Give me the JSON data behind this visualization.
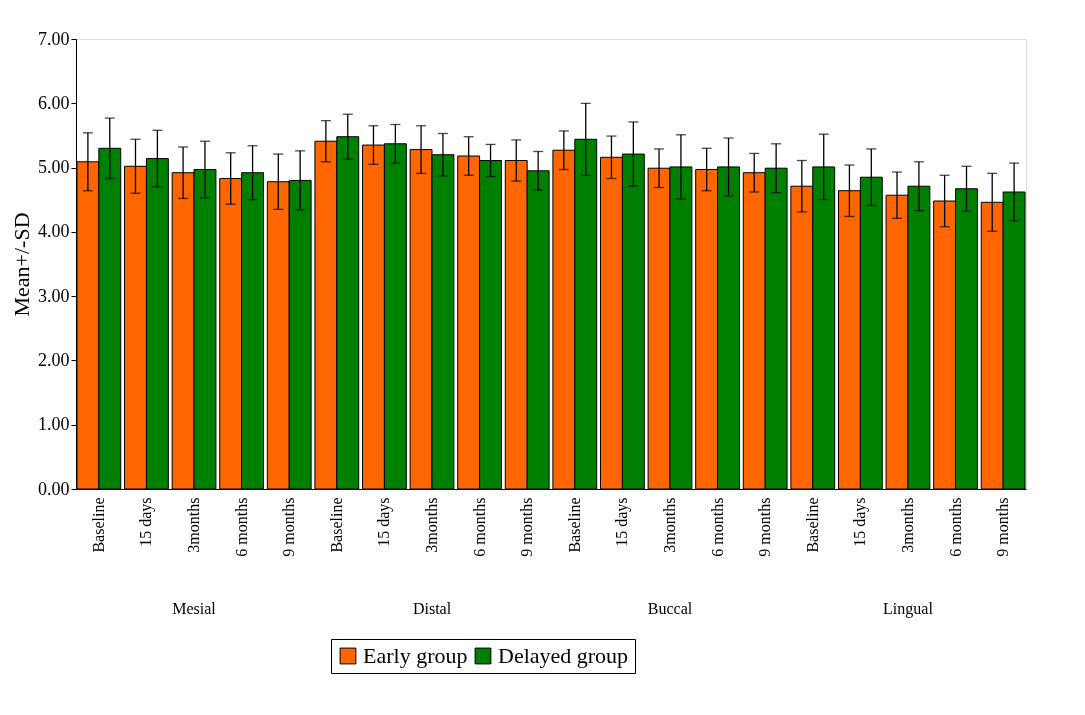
{
  "chart_data": {
    "type": "bar",
    "ylabel": "Mean+/-SD",
    "categories": [
      "Baseline",
      "15 days",
      "3months",
      "6 months",
      "9 months",
      "Baseline",
      "15 days",
      "3months",
      "6 months",
      "9 months",
      "Baseline",
      "15 days",
      "3months",
      "6 months",
      "9 months",
      "Baseline",
      "15 days",
      "3months",
      "6 months",
      "9 months"
    ],
    "series": [
      {
        "name": "Early group",
        "color": "#ff6600",
        "values": [
          5.09,
          5.02,
          4.92,
          4.83,
          4.78,
          5.41,
          5.35,
          5.28,
          5.18,
          5.11,
          5.27,
          5.16,
          4.99,
          4.97,
          4.92,
          4.71,
          4.64,
          4.57,
          4.48,
          4.46
        ],
        "errors": [
          0.45,
          0.42,
          0.4,
          0.4,
          0.43,
          0.32,
          0.3,
          0.37,
          0.3,
          0.32,
          0.3,
          0.33,
          0.3,
          0.33,
          0.3,
          0.4,
          0.4,
          0.36,
          0.4,
          0.45
        ]
      },
      {
        "name": "Delayed group",
        "color": "#008000",
        "values": [
          5.3,
          5.14,
          4.97,
          4.92,
          4.8,
          5.48,
          5.37,
          5.2,
          5.11,
          4.95,
          5.44,
          5.21,
          5.01,
          5.01,
          4.99,
          5.01,
          4.85,
          4.71,
          4.67,
          4.62
        ],
        "errors": [
          0.47,
          0.44,
          0.44,
          0.42,
          0.46,
          0.35,
          0.3,
          0.33,
          0.25,
          0.3,
          0.56,
          0.5,
          0.5,
          0.45,
          0.38,
          0.51,
          0.44,
          0.38,
          0.35,
          0.45
        ]
      }
    ],
    "annotations": [
      "Mesial",
      "Distal",
      "Buccal",
      "Lingual"
    ],
    "ylim": [
      0,
      7
    ],
    "yticks": [
      {
        "value": 0,
        "label": "0.00"
      },
      {
        "value": 1,
        "label": "1.00"
      },
      {
        "value": 2,
        "label": "2.00"
      },
      {
        "value": 3,
        "label": "3.00"
      },
      {
        "value": 4,
        "label": "4.00"
      },
      {
        "value": 5,
        "label": "5.00"
      },
      {
        "value": 6,
        "label": "6.00"
      },
      {
        "value": 7,
        "label": "7.00"
      }
    ],
    "grid": false,
    "legend": "bottom"
  }
}
